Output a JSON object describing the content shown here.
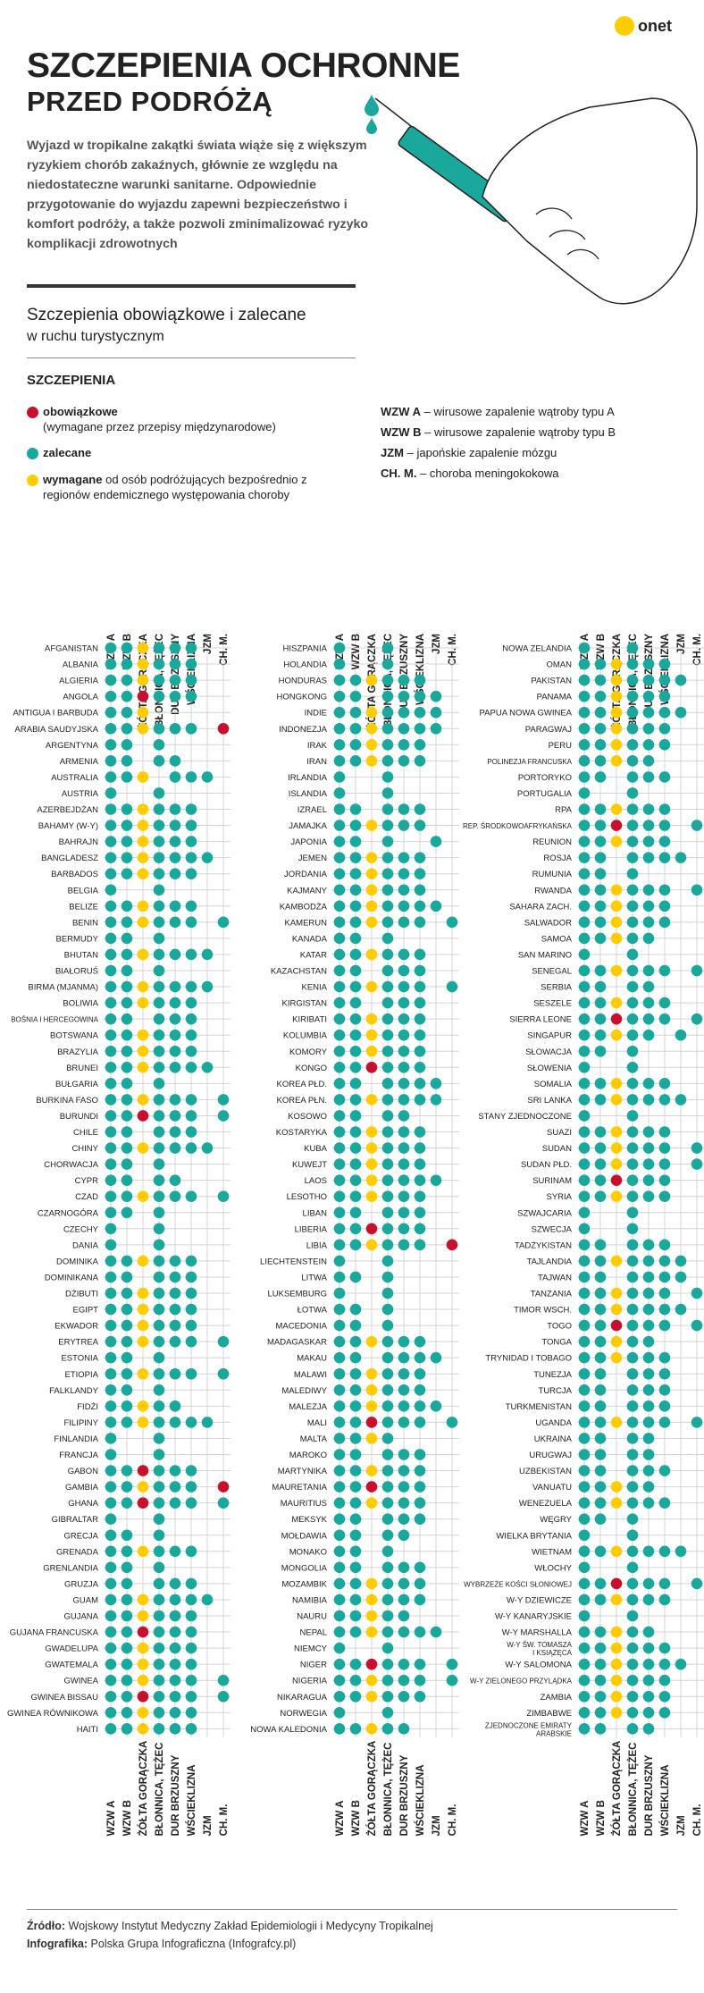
{
  "brand": {
    "logo_text": "onet"
  },
  "title": {
    "main": "SZCZEPIENIA OCHRONNE",
    "sub": "PRZED PODRÓŻĄ"
  },
  "intro": "Wyjazd w tropikalne zakątki świata wiąże się z większym ryzykiem chorób zakaźnych, głównie ze względu na niedostateczne warunki sanitarne. Odpowiednie przygotowanie do wyjazdu zapewni bezpieczeństwo i komfort podróży, a także pozwoli zminimalizować ryzyko komplikacji zdrowotnych",
  "section": {
    "title": "Szczepienia obowiązkowe i zalecane",
    "subtitle": "w ruchu turystycznym"
  },
  "legend": {
    "heading": "SZCZEPIENIA",
    "items": [
      {
        "bold": "obowiązkowe",
        "rest": "(wymagane przez przepisy międzynarodowe)",
        "color": "#c8102e"
      },
      {
        "bold": "zalecane",
        "rest": "",
        "color": "#1aa79c"
      },
      {
        "bold": "wymagane",
        "rest": "od osób podróżujących bezpośrednio z regionów endemicznego występowania choroby",
        "color": "#ffcc00"
      }
    ]
  },
  "abbreviations": [
    {
      "abbr": "WZW A",
      "desc": "– wirusowe zapalenie wątroby typu A"
    },
    {
      "abbr": "WZW B",
      "desc": "– wirusowe zapalenie wątroby typu B"
    },
    {
      "abbr": "JZM",
      "desc": "– japońskie zapalenie mózgu"
    },
    {
      "abbr": "CH. M.",
      "desc": "– choroba meningokokowa"
    }
  ],
  "colors": {
    "mandatory": "#c8102e",
    "recommended": "#1aa79c",
    "required": "#ffcc00",
    "grid": "#d4d4d4"
  },
  "columns": [
    "WZW A",
    "WZW B",
    "ŻÓŁTA GORĄCZKA",
    "BŁONNICA, TĘŻEC",
    "DUR BRZUSZNY",
    "WŚCIEKLIZNA",
    "JZM",
    "CH. M."
  ],
  "groups": [
    [
      [
        "AFGANISTAN",
        "RRYRRR.."
      ],
      [
        "ALBANIA",
        "RRYRRR.."
      ],
      [
        "ALGIERIA",
        "RRYRRR.."
      ],
      [
        "ANGOLA",
        "RRMRRR.."
      ],
      [
        "ANTIGUA I BARBUDA",
        "RRY....."
      ],
      [
        "ARABIA SAUDYJSKA",
        "RRYRRR.M"
      ],
      [
        "ARGENTYNA",
        "RR.R...."
      ],
      [
        "ARMENIA",
        "RR.RR..."
      ],
      [
        "AUSTRALIA",
        "RRY.RRR."
      ],
      [
        "AUSTRIA",
        "R..R...."
      ],
      [
        "AZERBEJDŻAN",
        "RRYRRR.."
      ],
      [
        "BAHAMY (W-Y)",
        "RRYRRR.."
      ],
      [
        "BAHRAJN",
        "RRYRRR.."
      ],
      [
        "BANGLADESZ",
        "RRYRRRR."
      ],
      [
        "BARBADOS",
        "RRYRRR.."
      ],
      [
        "BELGIA",
        "R..R...."
      ],
      [
        "BELIZE",
        "RRYRRR.."
      ],
      [
        "BENIN",
        "RRYRRR.R"
      ],
      [
        "BERMUDY",
        "RR.R...."
      ],
      [
        "BHUTAN",
        "RRYRRRR."
      ],
      [
        "BIAŁORUŚ",
        "RR.R...."
      ],
      [
        "BIRMA (MJANMA)",
        "RRYRRRR."
      ],
      [
        "BOLIWIA",
        "RRYRRR.."
      ],
      [
        "BOŚNIA I HERCEGOWINA",
        "RR.RRR.."
      ],
      [
        "BOTSWANA",
        "RRYRRR.."
      ],
      [
        "BRAZYLIA",
        "RRYRRR.."
      ],
      [
        "BRUNEI",
        "RRYRRRR."
      ],
      [
        "BUŁGARIA",
        "RR.R...."
      ],
      [
        "BURKINA FASO",
        "RRYRRR.R"
      ],
      [
        "BURUNDI",
        "RRMRRR.R"
      ],
      [
        "CHILE",
        "RR.RRR.."
      ],
      [
        "CHINY",
        "RRYRRRR."
      ],
      [
        "CHORWACJA",
        "RR.R...."
      ],
      [
        "CYPR",
        "RR.RR..."
      ],
      [
        "CZAD",
        "RRYRRR.R"
      ],
      [
        "CZARNOGÓRA",
        "RR.R...."
      ],
      [
        "CZECHY",
        "R..R...."
      ],
      [
        "DANIA",
        "R..R...."
      ],
      [
        "DOMINIKA",
        "RRYRRR.."
      ],
      [
        "DOMINIKANA",
        "RR.RRR.."
      ],
      [
        "DŻIBUTI",
        "RRYRRR.."
      ],
      [
        "EGIPT",
        "RRYRRR.."
      ],
      [
        "EKWADOR",
        "RRYRRR.."
      ],
      [
        "ERYTREA",
        "RRYRRR.R"
      ],
      [
        "ESTONIA",
        "RR.R...."
      ],
      [
        "ETIOPIA",
        "RRYRRR.R"
      ],
      [
        "FALKLANDY",
        "RR.R...."
      ],
      [
        "FIDŻI",
        "RRYRR..."
      ],
      [
        "FILIPINY",
        "RRYRRRR."
      ],
      [
        "FINLANDIA",
        "R..R...."
      ],
      [
        "FRANCJA",
        "R..R...."
      ],
      [
        "GABON",
        "RRMRRR.."
      ],
      [
        "GAMBIA",
        "RRYRRR.M"
      ],
      [
        "GHANA",
        "RRMRRR.R"
      ],
      [
        "GIBRALTAR",
        "R..R...."
      ],
      [
        "GRECJA",
        "RR.R...."
      ],
      [
        "GRENADA",
        "RRYRRR.."
      ],
      [
        "GRENLANDIA",
        "RR.R...."
      ],
      [
        "GRUZJA",
        "RR.RRR.."
      ],
      [
        "GUAM",
        "RRYRRRR."
      ],
      [
        "GUJANA",
        "RRYRRR.."
      ],
      [
        "GUJANA FRANCUSKA",
        "RRMRRR.."
      ],
      [
        "GWADELUPA",
        "RRYRRR.."
      ],
      [
        "GWATEMALA",
        "RRYRRR.."
      ],
      [
        "GWINEA",
        "RRYRRR.R"
      ],
      [
        "GWINEA BISSAU",
        "RRMRRR.R"
      ],
      [
        "GWINEA RÓWNIKOWA",
        "RRYRRR.."
      ],
      [
        "HAITI",
        "RRYRRR.."
      ]
    ],
    [
      [
        "HISZPANIA",
        "R..R...."
      ],
      [
        "HOLANDIA",
        "R..R...."
      ],
      [
        "HONDURAS",
        "RRYRRR.."
      ],
      [
        "HONGKONG",
        "RR.RRRR."
      ],
      [
        "INDIE",
        "RRYRRRR."
      ],
      [
        "INDONEZJA",
        "RRYRRRR."
      ],
      [
        "IRAK",
        "RRYRRR.."
      ],
      [
        "IRAN",
        "RRYRRR.."
      ],
      [
        "IRLANDIA",
        "R..R...."
      ],
      [
        "ISLANDIA",
        "R..R...."
      ],
      [
        "IZRAEL",
        "RR.RRR.."
      ],
      [
        "JAMAJKA",
        "RRYRRR.."
      ],
      [
        "JAPONIA",
        "RR.R..R."
      ],
      [
        "JEMEN",
        "RRYRRR.."
      ],
      [
        "JORDANIA",
        "RRYRRR.."
      ],
      [
        "KAJMANY",
        "RRYRRR.."
      ],
      [
        "KAMBODŻA",
        "RRYRRRR."
      ],
      [
        "KAMERUN",
        "RRYRRR.R"
      ],
      [
        "KANADA",
        "RR.R...."
      ],
      [
        "KATAR",
        "RRYRRR.."
      ],
      [
        "KAZACHSTAN",
        "RR.RRR.."
      ],
      [
        "KENIA",
        "RRYRRR.R"
      ],
      [
        "KIRGISTAN",
        "RR.RRR.."
      ],
      [
        "KIRIBATI",
        "RRYRRR.."
      ],
      [
        "KOLUMBIA",
        "RRYRRR.."
      ],
      [
        "KOMORY",
        "RRYRRR.."
      ],
      [
        "KONGO",
        "RRMRRR.."
      ],
      [
        "KOREA PŁD.",
        "RR.RRRR."
      ],
      [
        "KOREA PŁN.",
        "RRYRRRR."
      ],
      [
        "KOSOWO",
        "RR.RR..."
      ],
      [
        "KOSTARYKA",
        "RRYRRR.."
      ],
      [
        "KUBA",
        "RRYRRR.."
      ],
      [
        "KUWEJT",
        "RRYRRR.."
      ],
      [
        "LAOS",
        "RRYRRRR."
      ],
      [
        "LESOTHO",
        "RRYRRR.."
      ],
      [
        "LIBAN",
        "RR.RRR.."
      ],
      [
        "LIBERIA",
        "RRMRRR.."
      ],
      [
        "LIBIA",
        "RRYRRR.M"
      ],
      [
        "LIECHTENSTEIN",
        "R..R...."
      ],
      [
        "LITWA",
        "RR.R...."
      ],
      [
        "LUKSEMBURG",
        "R..R...."
      ],
      [
        "ŁOTWA",
        "RR.R...."
      ],
      [
        "MACEDONIA",
        "RR.R...."
      ],
      [
        "MADAGASKAR",
        "RRYRRR.."
      ],
      [
        "MAKAU",
        "RR.RRRR."
      ],
      [
        "MALAWI",
        "RRYRRR.."
      ],
      [
        "MALEDIWY",
        "RRYRRR.."
      ],
      [
        "MALEZJA",
        "RRYRRRR."
      ],
      [
        "MALI",
        "RRMRRR.R"
      ],
      [
        "MALTA",
        "RRYR...."
      ],
      [
        "MAROKO",
        "RR.RRR.."
      ],
      [
        "MARTYNIKA",
        "RRYRRR.."
      ],
      [
        "MAURETANIA",
        "RRMRRR.."
      ],
      [
        "MAURITIUS",
        "RRYRRR.."
      ],
      [
        "MEKSYK",
        "RR.RRR.."
      ],
      [
        "MOŁDAWIA",
        "RR.RR..."
      ],
      [
        "MONAKO",
        "RR.R...."
      ],
      [
        "MONGOLIA",
        "RR.RRR.."
      ],
      [
        "MOZAMBIK",
        "RRYRRR.."
      ],
      [
        "NAMIBIA",
        "RRYRRR.."
      ],
      [
        "NAURU",
        "RRYRR..."
      ],
      [
        "NEPAL",
        "RRYRRRR."
      ],
      [
        "NIEMCY",
        "R..R...."
      ],
      [
        "NIGER",
        "RRMRRR.R"
      ],
      [
        "NIGERIA",
        "RRYRRR.R"
      ],
      [
        "NIKARAGUA",
        "RRYRRR.."
      ],
      [
        "NORWEGIA",
        "R..R...."
      ],
      [
        "NOWA KALEDONIA",
        "RRYRR..."
      ]
    ],
    [
      [
        "NOWA ZELANDIA",
        "R..R...."
      ],
      [
        "OMAN",
        "RRYRRR.."
      ],
      [
        "PAKISTAN",
        "RRYRRRR."
      ],
      [
        "PANAMA",
        "RRYRRR.."
      ],
      [
        "PAPUA NOWA GWINEA",
        "RRYRRRR."
      ],
      [
        "PARAGWAJ",
        "RRYRRR.."
      ],
      [
        "PERU",
        "RRYRRR.."
      ],
      [
        "POLINEZJA FRANCUSKA",
        "RRYRR..."
      ],
      [
        "PORTORYKO",
        "RR.RRR.."
      ],
      [
        "PORTUGALIA",
        "R..R...."
      ],
      [
        "RPA",
        "RRYRRR.."
      ],
      [
        "REP. ŚRODKOWOAFRYKAŃSKA",
        "RRMRRR.R"
      ],
      [
        "REUNION",
        "RRYRRR.."
      ],
      [
        "ROSJA",
        "RR.RRRR."
      ],
      [
        "RUMUNIA",
        "RR.R...."
      ],
      [
        "RWANDA",
        "RRYRRR.R"
      ],
      [
        "SAHARA ZACH.",
        "RRYRRR.."
      ],
      [
        "SALWADOR",
        "RRYRRR.."
      ],
      [
        "SAMOA",
        "RRYRR..."
      ],
      [
        "SAN MARINO",
        "R..R...."
      ],
      [
        "SENEGAL",
        "RRYRRR.R"
      ],
      [
        "SERBIA",
        "RR.RR..."
      ],
      [
        "SESZELE",
        "RRYRRR.."
      ],
      [
        "SIERRA LEONE",
        "RRMRRR.R"
      ],
      [
        "SINGAPUR",
        "RRYRR.R."
      ],
      [
        "SŁOWACJA",
        "RR.R...."
      ],
      [
        "SŁOWENIA",
        "R..R...."
      ],
      [
        "SOMALIA",
        "RRYRRR.."
      ],
      [
        "SRI LANKA",
        "RRYRRRR."
      ],
      [
        "STANY ZJEDNOCZONE",
        "R..R...."
      ],
      [
        "SUAZI",
        "RRYRRR.."
      ],
      [
        "SUDAN",
        "RRYRRR.R"
      ],
      [
        "SUDAN PŁD.",
        "RRYRRR.R"
      ],
      [
        "SURINAM",
        "RRMRRR.."
      ],
      [
        "SYRIA",
        "RRYRRR.."
      ],
      [
        "SZWAJCARIA",
        "R..R...."
      ],
      [
        "SZWECJA",
        "R..R...."
      ],
      [
        "TADŻYKISTAN",
        "RR.RRR.."
      ],
      [
        "TAJLANDIA",
        "RRYRRRR."
      ],
      [
        "TAJWAN",
        "RR.RRRR."
      ],
      [
        "TANZANIA",
        "RRYRRR.R"
      ],
      [
        "TIMOR WSCH.",
        "RRYRRRR."
      ],
      [
        "TOGO",
        "RRMRRR.R"
      ],
      [
        "TONGA",
        "RRYRR..."
      ],
      [
        "TRYNIDAD I TOBAGO",
        "RRYRRR.."
      ],
      [
        "TUNEZJA",
        "RR.RRR.."
      ],
      [
        "TURCJA",
        "RR.RRR.."
      ],
      [
        "TURKMENISTAN",
        "RR.RRR.."
      ],
      [
        "UGANDA",
        "RRYRRR.R"
      ],
      [
        "UKRAINA",
        "RR.RR..."
      ],
      [
        "URUGWAJ",
        "RR.RR..."
      ],
      [
        "UZBEKISTAN",
        "RR.RRR.."
      ],
      [
        "VANUATU",
        "RRYRR..."
      ],
      [
        "WENEZUELA",
        "RRYRRR.."
      ],
      [
        "WĘGRY",
        "RR.R...."
      ],
      [
        "WIELKA BRYTANIA",
        "R..R...."
      ],
      [
        "WIETNAM",
        "RRYRRRR."
      ],
      [
        "WŁOCHY",
        "R..R...."
      ],
      [
        "WYBRZEŻE KOŚCI SŁONIOWEJ",
        "RRMRRR.R"
      ],
      [
        "W-Y DZIEWICZE",
        "RRYRRR.."
      ],
      [
        "W-Y KANARYJSKIE",
        "R..R...."
      ],
      [
        "W-Y MARSHALLA",
        "RRYRR..."
      ],
      [
        "W-Y ŚW. TOMASZA I KSIĄŻĘCA",
        "RRYRRR.."
      ],
      [
        "W-Y SALOMONA",
        "RRYRRRR."
      ],
      [
        "W-Y ZIELONEGO PRZYLĄDKA",
        "RRYRRR.."
      ],
      [
        "ZAMBIA",
        "RRYRRR.."
      ],
      [
        "ZIMBABWE",
        "RRYRRR.."
      ],
      [
        "ZJEDNOCZONE EMIRATY ARABSKIE",
        "RR.RR..."
      ]
    ]
  ],
  "footer": {
    "source_label": "Źródło:",
    "source_text": "Wojskowy Instytut Medyczny Zakład Epidemiologii i Medycyny Tropikalnej",
    "infographic_label": "Infografika:",
    "infographic_text": "Polska Grupa Infograficzna (Infografcy.pl)"
  }
}
